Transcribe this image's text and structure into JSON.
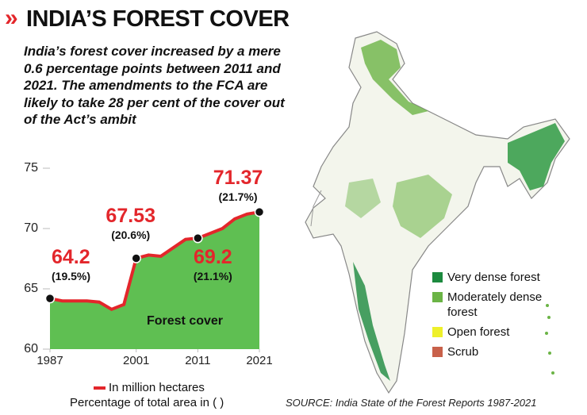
{
  "header": {
    "title": "INDIA’S FOREST COVER",
    "subtitle": "India’s forest cover increased by a mere 0.6 percentage points between 2011 and 2021. The amendments to the FCA are likely to take 28 per cent of the cover out of the Act’s ambit"
  },
  "chart_data": {
    "type": "area",
    "x": [
      1987,
      1989,
      1991,
      1993,
      1995,
      1997,
      1999,
      2001,
      2003,
      2005,
      2009,
      2011,
      2013,
      2015,
      2017,
      2019,
      2021
    ],
    "series": [
      {
        "name": "In million hectares",
        "color": "#e3262b",
        "fill": "#5fbf52",
        "values": [
          64.2,
          64.0,
          64.0,
          64.0,
          63.9,
          63.3,
          63.7,
          67.53,
          67.8,
          67.7,
          69.1,
          69.2,
          69.6,
          70.0,
          70.8,
          71.2,
          71.37
        ]
      }
    ],
    "area_label": "Forest cover",
    "share_note": "Percentage of total area in ( )",
    "annotations": [
      {
        "x": 1987,
        "value": 64.2,
        "share": {
          "value": 19.5,
          "label": "(19.5%)"
        }
      },
      {
        "x": 2001,
        "value": 67.53,
        "share": {
          "value": 20.6,
          "label": "(20.6%)"
        }
      },
      {
        "x": 2011,
        "value": 69.2,
        "share": {
          "value": 21.1,
          "label": "(21.1%)"
        }
      },
      {
        "x": 2021,
        "value": 71.37,
        "share": {
          "value": 21.7,
          "label": "(21.7%)"
        }
      }
    ],
    "xlim": [
      1987,
      2021
    ],
    "xticks": [
      1987,
      2001,
      2011,
      2021
    ],
    "ylim": [
      60,
      75
    ],
    "yticks": [
      60,
      65,
      70,
      75
    ]
  },
  "map": {
    "legend": [
      {
        "name": "Very dense forest",
        "color": "#1c8a3e"
      },
      {
        "name": "Moderately dense forest",
        "color": "#6bb446"
      },
      {
        "name": "Open forest",
        "color": "#eef02a"
      },
      {
        "name": "Scrub",
        "color": "#c8614a"
      }
    ]
  },
  "source": "SOURCE: India State of the Forest Reports 1987-2021"
}
